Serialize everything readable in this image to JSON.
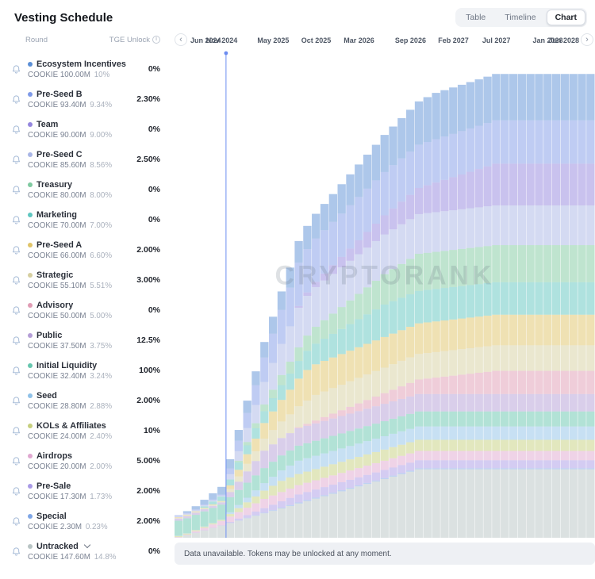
{
  "header": {
    "title": "Vesting Schedule",
    "tabs": [
      {
        "label": "Table",
        "active": false
      },
      {
        "label": "Timeline",
        "active": false
      },
      {
        "label": "Chart",
        "active": true
      }
    ]
  },
  "list": {
    "columns": {
      "round": "Round",
      "tge": "TGE Unlock"
    },
    "rounds": [
      {
        "name": "Ecosystem Incentives",
        "color": "#5b8fd6",
        "symbol": "COOKIE",
        "amount": "100.00M",
        "share": "10%",
        "tge": "0%"
      },
      {
        "name": "Pre-Seed B",
        "color": "#7f9ae8",
        "symbol": "COOKIE",
        "amount": "93.40M",
        "share": "9.34%",
        "tge": "2.30%"
      },
      {
        "name": "Team",
        "color": "#9486de",
        "symbol": "COOKIE",
        "amount": "90.00M",
        "share": "9.00%",
        "tge": "0%"
      },
      {
        "name": "Pre-Seed C",
        "color": "#a9b6e6",
        "symbol": "COOKIE",
        "amount": "85.60M",
        "share": "8.56%",
        "tge": "2.50%"
      },
      {
        "name": "Treasury",
        "color": "#7fc9a0",
        "symbol": "COOKIE",
        "amount": "80.00M",
        "share": "8.00%",
        "tge": "0%"
      },
      {
        "name": "Marketing",
        "color": "#5fc6c0",
        "symbol": "COOKIE",
        "amount": "70.00M",
        "share": "7.00%",
        "tge": "0%"
      },
      {
        "name": "Pre-Seed A",
        "color": "#e0c468",
        "symbol": "COOKIE",
        "amount": "66.00M",
        "share": "6.60%",
        "tge": "2.00%"
      },
      {
        "name": "Strategic",
        "color": "#d6cfa0",
        "symbol": "COOKIE",
        "amount": "55.10M",
        "share": "5.51%",
        "tge": "3.00%"
      },
      {
        "name": "Advisory",
        "color": "#e09cb4",
        "symbol": "COOKIE",
        "amount": "50.00M",
        "share": "5.00%",
        "tge": "0%"
      },
      {
        "name": "Public",
        "color": "#b49ed6",
        "symbol": "COOKIE",
        "amount": "37.50M",
        "share": "3.75%",
        "tge": "12.5%"
      },
      {
        "name": "Initial Liquidity",
        "color": "#66c6ae",
        "symbol": "COOKIE",
        "amount": "32.40M",
        "share": "3.24%",
        "tge": "100%"
      },
      {
        "name": "Seed",
        "color": "#8fc1e8",
        "symbol": "COOKIE",
        "amount": "28.80M",
        "share": "2.88%",
        "tge": "2.00%"
      },
      {
        "name": "KOLs & Affiliates",
        "color": "#c6cf7e",
        "symbol": "COOKIE",
        "amount": "24.00M",
        "share": "2.40%",
        "tge": "10%"
      },
      {
        "name": "Airdrops",
        "color": "#e0a8d0",
        "symbol": "COOKIE",
        "amount": "20.00M",
        "share": "2.00%",
        "tge": "5.00%"
      },
      {
        "name": "Pre-Sale",
        "color": "#a99ae6",
        "symbol": "COOKIE",
        "amount": "17.30M",
        "share": "1.73%",
        "tge": "2.00%"
      },
      {
        "name": "Special",
        "color": "#7ea6e6",
        "symbol": "COOKIE",
        "amount": "2.30M",
        "share": "0.23%",
        "tge": "2.00%"
      },
      {
        "name": "Untracked",
        "color": "#b8c4c4",
        "symbol": "COOKIE",
        "amount": "147.60M",
        "share": "14.8%",
        "tge": "0%",
        "expandable": true
      }
    ]
  },
  "chart": {
    "watermark": "CRYPTORANK",
    "disclaimer": "Data unavailable. Tokens may be unlocked at any moment."
  },
  "chart_data": {
    "type": "area",
    "stacked": true,
    "unit": "COOKIE tokens (millions), total supply 1000M",
    "x_axis": {
      "start": "Jun 2024",
      "end": "Jun 2028",
      "months": 49,
      "tick_labels": [
        "Jun 2024",
        "Nov 2024",
        "May 2025",
        "Oct 2025",
        "Mar 2026",
        "Sep 2026",
        "Feb 2027",
        "Jul 2027",
        "Jan 2028",
        "Jun 2028"
      ],
      "tick_month_index": [
        0,
        5,
        11,
        16,
        21,
        27,
        32,
        37,
        43,
        48
      ]
    },
    "ylim": [
      0,
      1050
    ],
    "now_marker_month": 6,
    "note": "stepwise monthly unlocks: unlocked(m) = amount*(tge + (1-tge)*clamp((m-cliff)/vest,0,1)); cliff/vest estimated from curve shape; series listed bottom-to-top of stack",
    "series": [
      {
        "name": "Untracked",
        "amount": 147.6,
        "tge": 0,
        "cliff": 0,
        "vest": 28,
        "color": "#b8c4c4"
      },
      {
        "name": "Special",
        "amount": 2.3,
        "tge": 0.02,
        "cliff": 5,
        "vest": 9,
        "color": "#7ea6e6"
      },
      {
        "name": "Pre-Sale",
        "amount": 17.3,
        "tge": 0.02,
        "cliff": 5,
        "vest": 9,
        "color": "#a99ae6"
      },
      {
        "name": "Airdrops",
        "amount": 20,
        "tge": 0.05,
        "cliff": 1,
        "vest": 9,
        "color": "#e0a8d0"
      },
      {
        "name": "KOLs & Affiliates",
        "amount": 24,
        "tge": 0.1,
        "cliff": 5,
        "vest": 7,
        "color": "#c6cf7e"
      },
      {
        "name": "Seed",
        "amount": 28.8,
        "tge": 0.02,
        "cliff": 5,
        "vest": 9,
        "color": "#8fc1e8"
      },
      {
        "name": "Initial Liquidity",
        "amount": 32.4,
        "tge": 1,
        "cliff": 0,
        "vest": 0,
        "color": "#66c6ae"
      },
      {
        "name": "Public",
        "amount": 37.5,
        "tge": 0.125,
        "cliff": 5,
        "vest": 5,
        "color": "#b49ed6"
      },
      {
        "name": "Advisory",
        "amount": 50,
        "tge": 0,
        "cliff": 13,
        "vest": 24,
        "color": "#e09cb4"
      },
      {
        "name": "Strategic",
        "amount": 55.1,
        "tge": 0.03,
        "cliff": 5,
        "vest": 11,
        "color": "#d6cfa0"
      },
      {
        "name": "Pre-Seed A",
        "amount": 66,
        "tge": 0.02,
        "cliff": 5,
        "vest": 10,
        "color": "#e0c468"
      },
      {
        "name": "Marketing",
        "amount": 70,
        "tge": 0,
        "cliff": 2,
        "vest": 22,
        "color": "#5fc6c0"
      },
      {
        "name": "Treasury",
        "amount": 80,
        "tge": 0,
        "cliff": 6,
        "vest": 22,
        "color": "#7fc9a0"
      },
      {
        "name": "Pre-Seed C",
        "amount": 85.6,
        "tge": 0.025,
        "cliff": 5,
        "vest": 9,
        "color": "#a9b6e6"
      },
      {
        "name": "Team",
        "amount": 90,
        "tge": 0,
        "cliff": 13,
        "vest": 24,
        "color": "#9486de"
      },
      {
        "name": "Pre-Seed B",
        "amount": 93.4,
        "tge": 0.023,
        "cliff": 5,
        "vest": 9,
        "color": "#7f9ae8"
      },
      {
        "name": "Ecosystem Incentives",
        "amount": 100,
        "tge": 0,
        "cliff": 0,
        "vest": 30,
        "color": "#5b8fd6"
      }
    ]
  }
}
